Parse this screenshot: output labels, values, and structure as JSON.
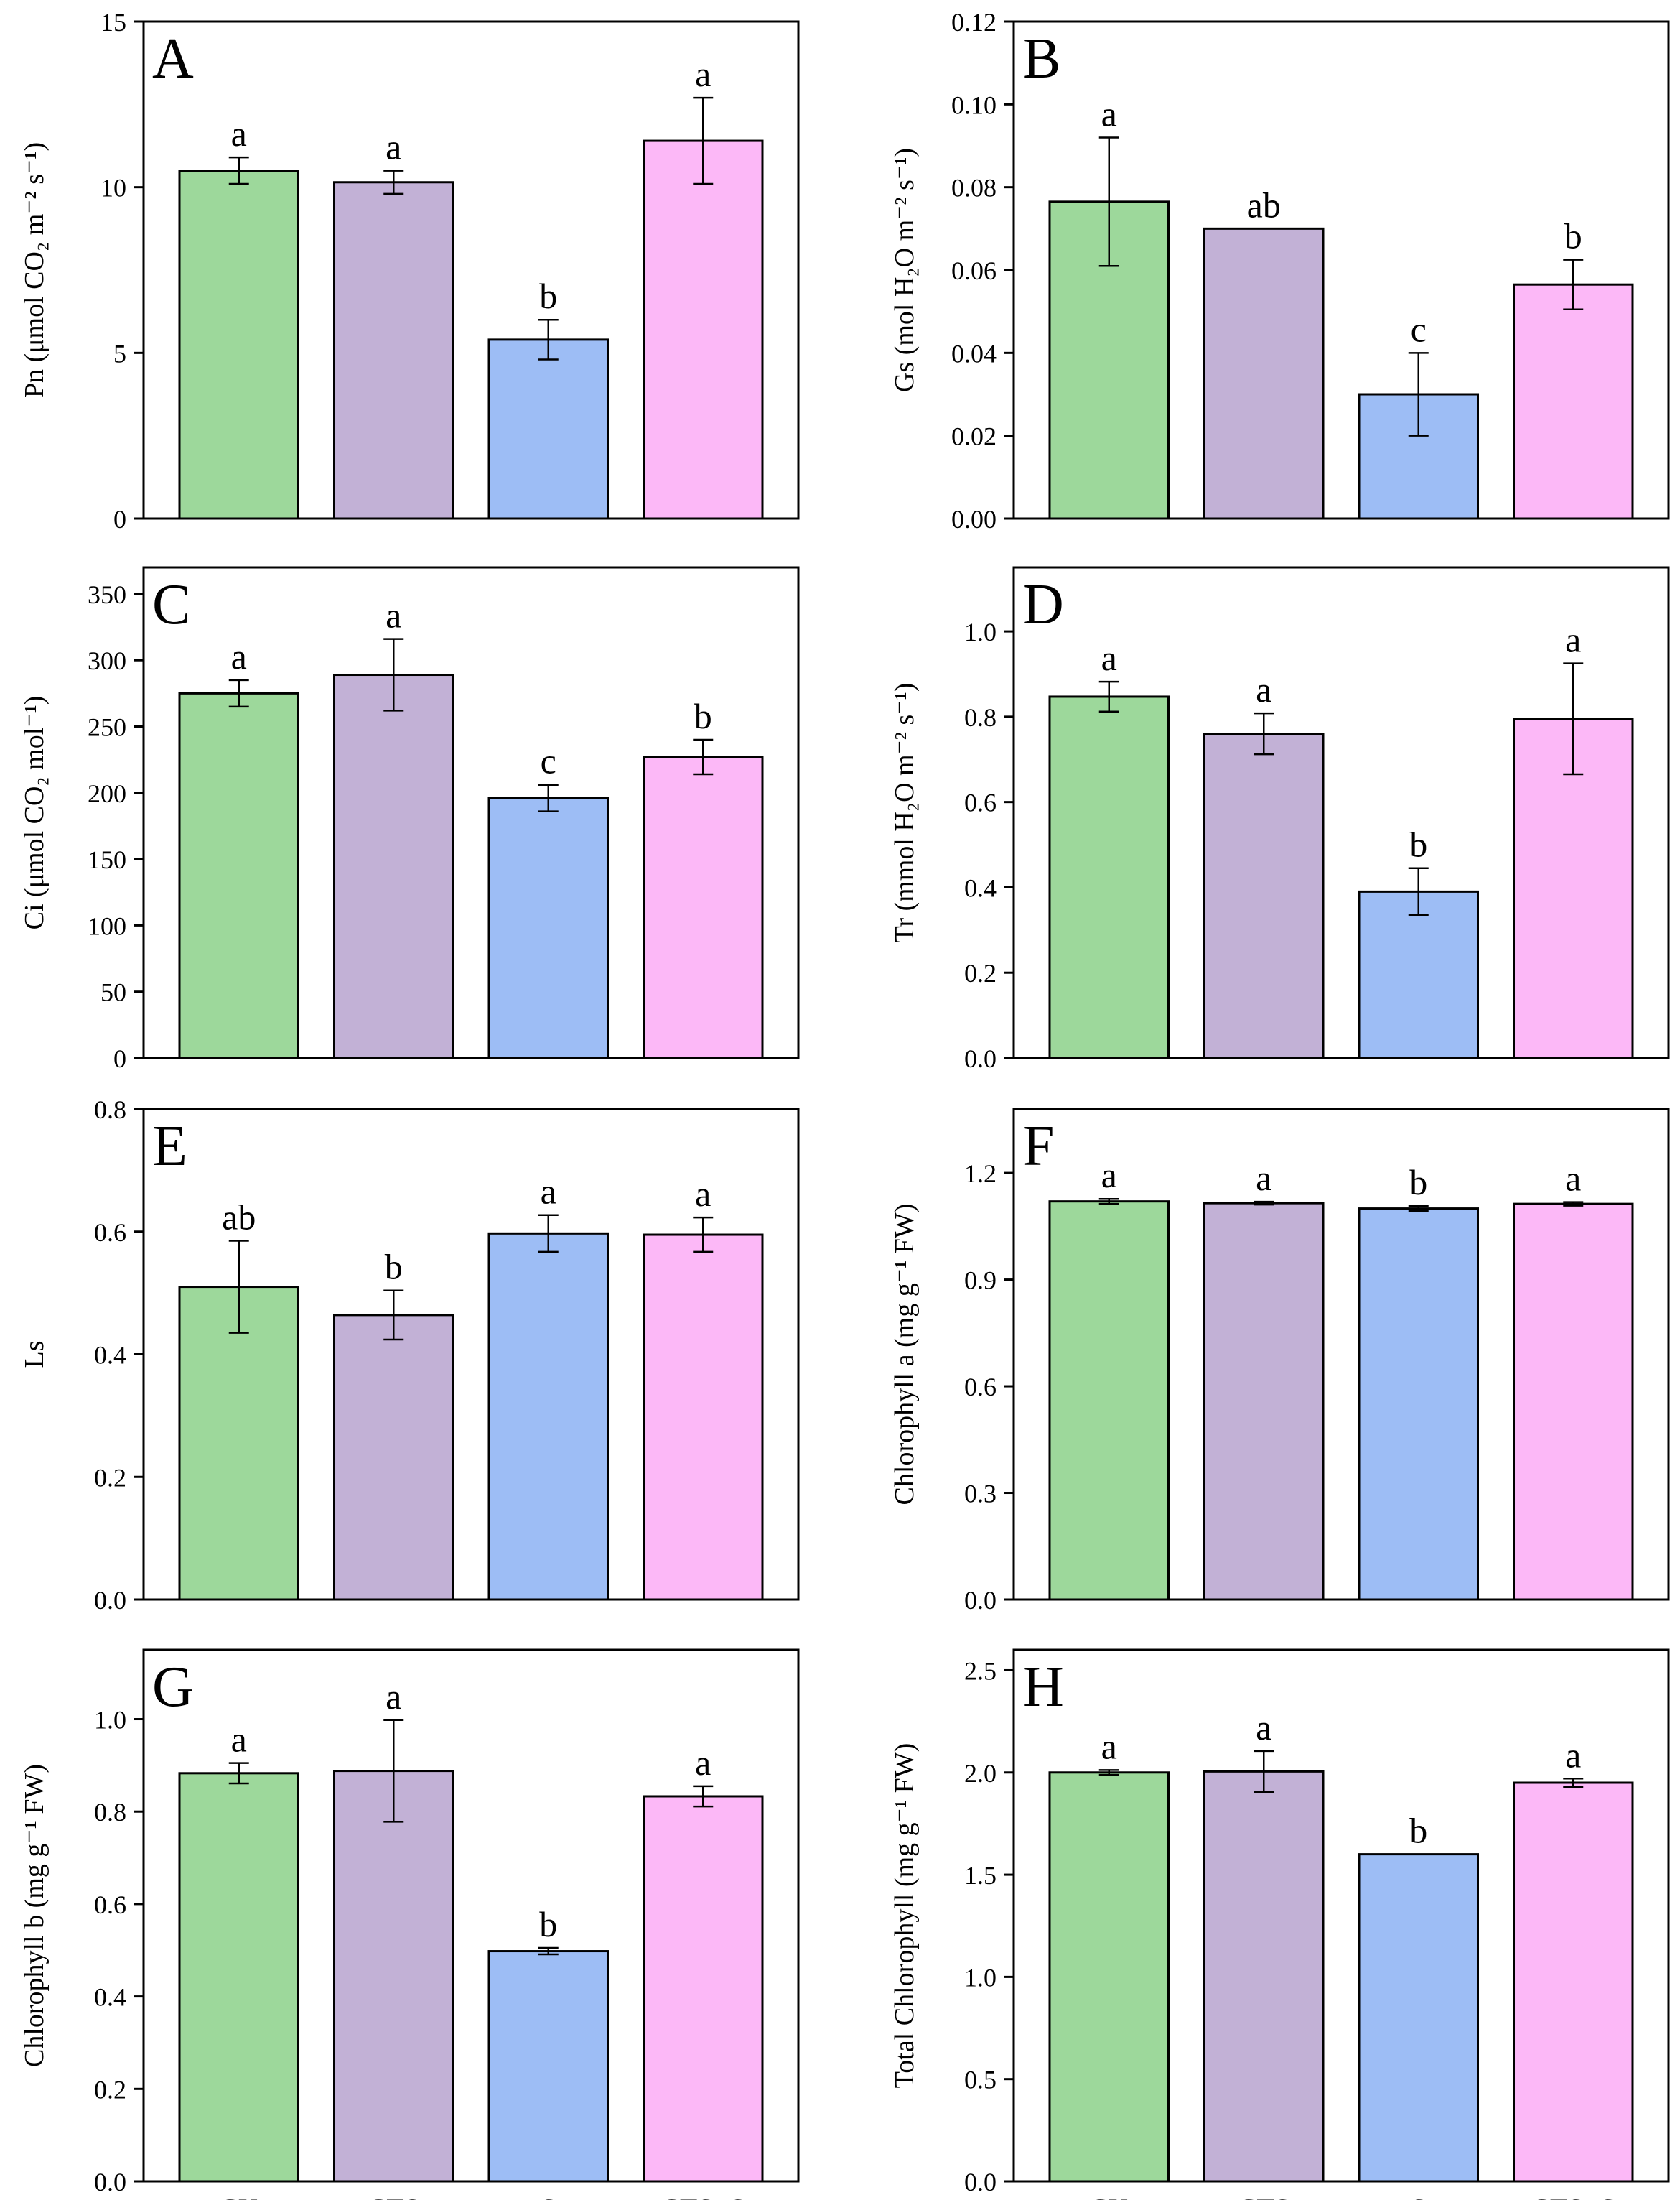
{
  "categories": [
    "CK",
    "CTS",
    "S",
    "CTS+S"
  ],
  "colors": [
    "#9dd89b",
    "#c2b1d6",
    "#9dbdf5",
    "#fcb8f7"
  ],
  "chart_data": [
    {
      "type": "bar",
      "panel": "A",
      "ylabel": "Pn (μmol CO₂ m⁻² s⁻¹)",
      "ylim": [
        0,
        15
      ],
      "yticks": [
        0,
        5,
        10,
        15
      ],
      "tick_labels": [
        "0",
        "5",
        "10",
        "15"
      ],
      "values": [
        10.5,
        10.15,
        5.4,
        11.4
      ],
      "errors": [
        0.4,
        0.35,
        0.6,
        1.3
      ],
      "letters": [
        "a",
        "a",
        "b",
        "a"
      ]
    },
    {
      "type": "bar",
      "panel": "B",
      "ylabel": "Gs (mol H₂O m⁻² s⁻¹)",
      "ylim": [
        0,
        0.12
      ],
      "yticks": [
        0,
        0.02,
        0.04,
        0.06,
        0.08,
        0.1,
        0.12
      ],
      "tick_labels": [
        "0.00",
        "0.02",
        "0.04",
        "0.06",
        "0.08",
        "0.10",
        "0.12"
      ],
      "values": [
        0.0765,
        0.07,
        0.03,
        0.0565
      ],
      "errors": [
        0.0155,
        0,
        0.01,
        0.006
      ],
      "letters": [
        "a",
        "ab",
        "c",
        "b"
      ]
    },
    {
      "type": "bar",
      "panel": "C",
      "ylabel": "Ci (μmol CO₂ mol⁻¹)",
      "ylim": [
        0,
        370
      ],
      "yticks": [
        0,
        50,
        100,
        150,
        200,
        250,
        300,
        350
      ],
      "tick_labels": [
        "0",
        "50",
        "100",
        "150",
        "200",
        "250",
        "300",
        "350"
      ],
      "values": [
        275,
        289,
        196,
        227
      ],
      "errors": [
        10,
        27,
        10,
        13
      ],
      "letters": [
        "a",
        "a",
        "c",
        "b"
      ]
    },
    {
      "type": "bar",
      "panel": "D",
      "ylabel": "Tr (mmol H₂O m⁻² s⁻¹)",
      "ylim": [
        0,
        1.15
      ],
      "yticks": [
        0,
        0.2,
        0.4,
        0.6,
        0.8,
        1.0
      ],
      "tick_labels": [
        "0.0",
        "0.2",
        "0.4",
        "0.6",
        "0.8",
        "1.0"
      ],
      "values": [
        0.847,
        0.76,
        0.39,
        0.795
      ],
      "errors": [
        0.035,
        0.048,
        0.055,
        0.13
      ],
      "letters": [
        "a",
        "a",
        "b",
        "a"
      ]
    },
    {
      "type": "bar",
      "panel": "E",
      "ylabel": "Ls",
      "ylim": [
        0,
        0.8
      ],
      "yticks": [
        0,
        0.2,
        0.4,
        0.6,
        0.8
      ],
      "tick_labels": [
        "0.0",
        "0.2",
        "0.4",
        "0.6",
        "0.8"
      ],
      "values": [
        0.51,
        0.464,
        0.597,
        0.595
      ],
      "errors": [
        0.075,
        0.04,
        0.03,
        0.028
      ],
      "letters": [
        "ab",
        "b",
        "a",
        "a"
      ]
    },
    {
      "type": "bar",
      "panel": "F",
      "ylabel": "Chlorophyll a (mg g⁻¹ FW)",
      "ylim": [
        0,
        1.38
      ],
      "yticks": [
        0,
        0.3,
        0.6,
        0.9,
        1.2
      ],
      "tick_labels": [
        "0.0",
        "0.3",
        "0.6",
        "0.9",
        "1.2"
      ],
      "values": [
        1.12,
        1.115,
        1.1,
        1.113
      ],
      "errors": [
        0.007,
        0.004,
        0.007,
        0.005
      ],
      "letters": [
        "a",
        "a",
        "b",
        "a"
      ]
    },
    {
      "type": "bar",
      "panel": "G",
      "ylabel": "Chlorophyll b (mg g⁻¹ FW)",
      "ylim": [
        0,
        1.15
      ],
      "yticks": [
        0,
        0.2,
        0.4,
        0.6,
        0.8,
        1.0
      ],
      "tick_labels": [
        "0.0",
        "0.2",
        "0.4",
        "0.6",
        "0.8",
        "1.0"
      ],
      "values": [
        0.883,
        0.888,
        0.498,
        0.833
      ],
      "errors": [
        0.022,
        0.11,
        0.007,
        0.022
      ],
      "letters": [
        "a",
        "a",
        "b",
        "a"
      ]
    },
    {
      "type": "bar",
      "panel": "H",
      "ylabel": "Total Chlorophyll (mg g⁻¹ FW)",
      "ylim": [
        0,
        2.6
      ],
      "yticks": [
        0,
        0.5,
        1.0,
        1.5,
        2.0,
        2.5
      ],
      "tick_labels": [
        "0.0",
        "0.5",
        "1.0",
        "1.5",
        "2.0",
        "2.5"
      ],
      "values": [
        2.0,
        2.005,
        1.6,
        1.95
      ],
      "errors": [
        0.012,
        0.1,
        0,
        0.02
      ],
      "letters": [
        "a",
        "a",
        "b",
        "a"
      ]
    }
  ]
}
